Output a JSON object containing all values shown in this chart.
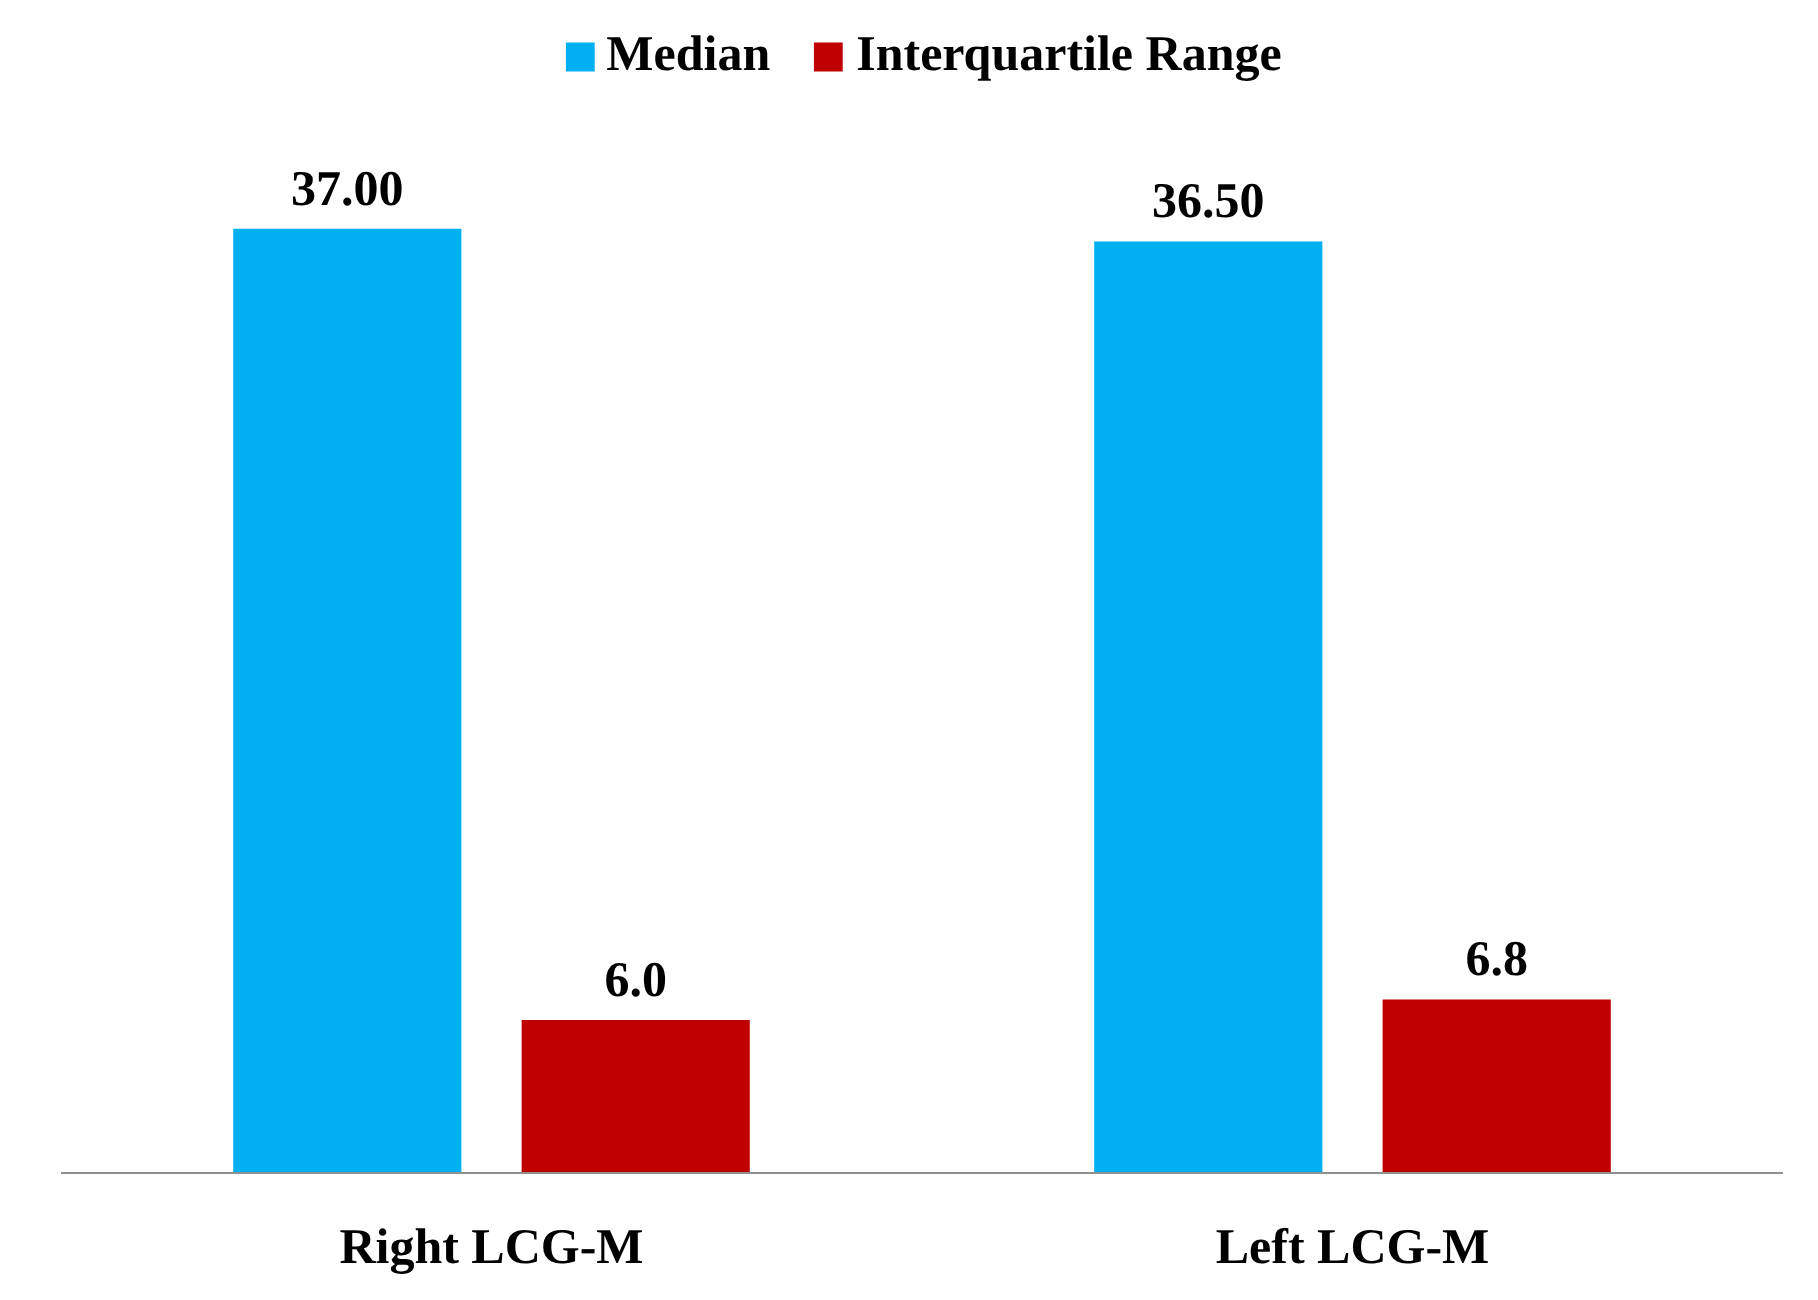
{
  "chart_data": {
    "type": "bar",
    "categories": [
      "Right LCG-M",
      "Left LCG-M"
    ],
    "series": [
      {
        "name": "Median",
        "color": "#00b0f0",
        "values": [
          37.0,
          36.5
        ],
        "value_labels": [
          "37.00",
          "36.50"
        ]
      },
      {
        "name": "Interquartile Range",
        "color": "#c00000",
        "values": [
          6.0,
          6.8
        ],
        "value_labels": [
          "6.0",
          "6.8"
        ]
      }
    ],
    "legend": "top",
    "grid": false
  }
}
